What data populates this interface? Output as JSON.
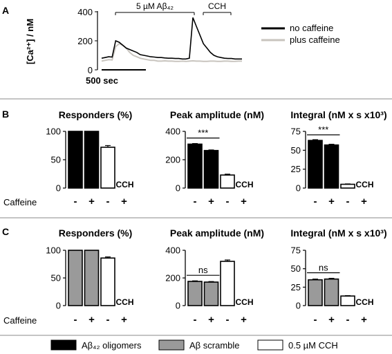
{
  "panel_letters": {
    "a": "A",
    "b": "B",
    "c": "C"
  },
  "trace": {
    "ylabel": "[Ca²⁺] / nM",
    "yticks": [
      "0",
      "200",
      "400"
    ],
    "scale_bar_label": "500 sec",
    "abeta_bar_label": "5 µM Aβ₄₂",
    "cch_bar_label": "CCH",
    "legend": [
      {
        "name": "no caffeine",
        "color": "#000000"
      },
      {
        "name": "plus caffeine",
        "color": "#c8c4be"
      }
    ]
  },
  "caffeine_label": "Caffeine",
  "sign_minus": "-",
  "sign_plus": "+",
  "cch_tag": "CCH",
  "sig_bc": "***",
  "sig_ns": "ns",
  "legend_bottom": [
    {
      "name": "Aβ₄₂ oligomers",
      "fill": "#000000"
    },
    {
      "name": "Aβ scramble",
      "fill": "#9a9a9a"
    },
    {
      "name": "0.5 µM CCH",
      "fill": "#ffffff"
    }
  ],
  "chart_data": [
    {
      "type": "line",
      "panel": "A",
      "ylabel": "[Ca²⁺] / nM",
      "ylim": [
        0,
        400
      ],
      "series": [
        {
          "name": "no caffeine",
          "color": "#000000",
          "x": [
            0,
            1,
            2,
            3,
            4,
            5,
            6,
            7,
            8,
            9,
            10,
            11,
            12,
            13,
            14,
            15,
            16,
            17,
            18,
            19,
            20,
            21,
            22,
            23,
            24,
            25,
            26,
            27,
            28,
            29,
            30,
            31,
            32,
            33,
            34,
            35,
            36,
            37,
            38,
            39,
            40
          ],
          "y": [
            80,
            85,
            90,
            88,
            200,
            190,
            170,
            150,
            140,
            130,
            120,
            105,
            100,
            95,
            90,
            88,
            85,
            85,
            82,
            80,
            80,
            78,
            78,
            75,
            75,
            80,
            360,
            300,
            240,
            180,
            150,
            120,
            100,
            90,
            85,
            80,
            78,
            78,
            75,
            75,
            75
          ]
        },
        {
          "name": "plus caffeine",
          "color": "#c8c4be",
          "x": [
            0,
            1,
            2,
            3,
            4,
            5,
            6,
            7,
            8,
            9,
            10,
            11,
            12,
            13,
            14,
            15,
            16,
            17,
            18,
            19,
            20,
            21,
            22,
            23,
            24,
            25,
            26,
            27,
            28,
            29,
            30,
            31,
            32,
            33,
            34,
            35,
            36,
            37,
            38,
            39,
            40
          ],
          "y": [
            60,
            65,
            70,
            68,
            160,
            180,
            170,
            150,
            120,
            100,
            90,
            80,
            75,
            70,
            65,
            65,
            60,
            60,
            62,
            60,
            60,
            58,
            58,
            60,
            58,
            60,
            62,
            60,
            60,
            58,
            58,
            60,
            60,
            58,
            58,
            60,
            60,
            58,
            58,
            60,
            60
          ]
        }
      ]
    },
    {
      "type": "bar",
      "panel": "B",
      "title": "Responders (%)",
      "ylim": [
        0,
        100
      ],
      "yticks": [
        0,
        50,
        100
      ],
      "categories": [
        "-",
        "+",
        "-",
        "+"
      ],
      "values": [
        100,
        100,
        72,
        0
      ],
      "errors": [
        0,
        0,
        3,
        0
      ],
      "fills": [
        "#000000",
        "#000000",
        "#ffffff",
        "#ffffff"
      ]
    },
    {
      "type": "bar",
      "panel": "B",
      "title": "Peak amplitude (nM)",
      "ylim": [
        0,
        400
      ],
      "yticks": [
        0,
        200,
        400
      ],
      "categories": [
        "-",
        "+",
        "-",
        "+"
      ],
      "values": [
        310,
        265,
        92,
        0
      ],
      "errors": [
        4,
        4,
        6,
        0
      ],
      "fills": [
        "#000000",
        "#000000",
        "#ffffff",
        "#ffffff"
      ],
      "annotation": "***"
    },
    {
      "type": "bar",
      "panel": "B",
      "title": "Integral (nM x s x10³)",
      "ylim": [
        0,
        75
      ],
      "yticks": [
        0,
        25,
        50,
        75
      ],
      "categories": [
        "-",
        "+",
        "-",
        "+"
      ],
      "values": [
        63,
        57,
        5,
        0
      ],
      "errors": [
        1,
        1,
        0.5,
        0
      ],
      "fills": [
        "#000000",
        "#000000",
        "#ffffff",
        "#ffffff"
      ],
      "annotation": "***"
    },
    {
      "type": "bar",
      "panel": "C",
      "title": "Responders (%)",
      "ylim": [
        0,
        100
      ],
      "yticks": [
        0,
        50,
        100
      ],
      "categories": [
        "-",
        "+",
        "-",
        "+"
      ],
      "values": [
        100,
        100,
        86,
        0
      ],
      "errors": [
        0,
        0,
        2,
        0
      ],
      "fills": [
        "#9a9a9a",
        "#9a9a9a",
        "#ffffff",
        "#ffffff"
      ]
    },
    {
      "type": "bar",
      "panel": "C",
      "title": "Peak amplitude (nM)",
      "ylim": [
        0,
        400
      ],
      "yticks": [
        0,
        200,
        400
      ],
      "categories": [
        "-",
        "+",
        "-",
        "+"
      ],
      "values": [
        175,
        170,
        320,
        0
      ],
      "errors": [
        4,
        4,
        10,
        0
      ],
      "fills": [
        "#9a9a9a",
        "#9a9a9a",
        "#ffffff",
        "#ffffff"
      ],
      "annotation": "ns"
    },
    {
      "type": "bar",
      "panel": "C",
      "title": "Integral (nM x s x10³)",
      "ylim": [
        0,
        75
      ],
      "yticks": [
        0,
        25,
        50,
        75
      ],
      "categories": [
        "-",
        "+",
        "-",
        "+"
      ],
      "values": [
        35,
        36,
        13,
        0
      ],
      "errors": [
        1,
        1,
        0.5,
        0
      ],
      "fills": [
        "#9a9a9a",
        "#9a9a9a",
        "#ffffff",
        "#ffffff"
      ],
      "annotation": "ns"
    }
  ]
}
